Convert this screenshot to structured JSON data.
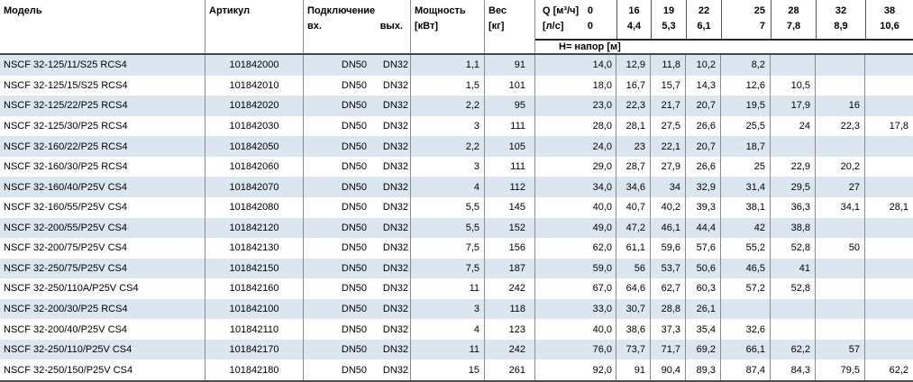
{
  "table": {
    "header": {
      "model": "Модель",
      "article": "Артикул",
      "connection": "Подключение",
      "inlet": "вх.",
      "outlet": "вых.",
      "power": "Мощность",
      "power_unit": "[кВт]",
      "weight": "Вес",
      "weight_unit": "[кг]",
      "q_label": "Q [м³/ч]",
      "ls_label": "[л/с]",
      "head_label": "Н= напор [м]",
      "flow_m3h": [
        "0",
        "16",
        "19",
        "22",
        "25",
        "28",
        "32",
        "38"
      ],
      "flow_ls": [
        "0",
        "4,4",
        "5,3",
        "6,1",
        "7",
        "7,8",
        "8,9",
        "10,6"
      ]
    },
    "rows": [
      {
        "model": "NSCF 32-125/11/S25 RCS4",
        "article": "101842000",
        "inlet": "DN50",
        "outlet": "DN32",
        "power": "1,1",
        "weight": "91",
        "q": [
          "14,0",
          "12,9",
          "11,8",
          "10,2",
          "8,2",
          "",
          "",
          ""
        ]
      },
      {
        "model": "NSCF 32-125/15/S25 RCS4",
        "article": "101842010",
        "inlet": "DN50",
        "outlet": "DN32",
        "power": "1,5",
        "weight": "101",
        "q": [
          "18,0",
          "16,7",
          "15,7",
          "14,3",
          "12,6",
          "10,5",
          "",
          ""
        ]
      },
      {
        "model": "NSCF 32-125/22/P25 RCS4",
        "article": "101842020",
        "inlet": "DN50",
        "outlet": "DN32",
        "power": "2,2",
        "weight": "95",
        "q": [
          "23,0",
          "22,3",
          "21,7",
          "20,7",
          "19,5",
          "17,9",
          "16",
          ""
        ]
      },
      {
        "model": "NSCF 32-125/30/P25 RCS4",
        "article": "101842030",
        "inlet": "DN50",
        "outlet": "DN32",
        "power": "3",
        "weight": "111",
        "q": [
          "28,0",
          "28,1",
          "27,5",
          "26,6",
          "25,5",
          "24",
          "22,3",
          "17,8"
        ]
      },
      {
        "model": "NSCF 32-160/22/P25 RCS4",
        "article": "101842050",
        "inlet": "DN50",
        "outlet": "DN32",
        "power": "2,2",
        "weight": "105",
        "q": [
          "24,0",
          "23",
          "22,1",
          "20,7",
          "18,7",
          "",
          "",
          ""
        ]
      },
      {
        "model": "NSCF 32-160/30/P25 RCS4",
        "article": "101842060",
        "inlet": "DN50",
        "outlet": "DN32",
        "power": "3",
        "weight": "111",
        "q": [
          "29,0",
          "28,7",
          "27,9",
          "26,6",
          "25",
          "22,9",
          "20,2",
          ""
        ]
      },
      {
        "model": "NSCF 32-160/40/P25V CS4",
        "article": "101842070",
        "inlet": "DN50",
        "outlet": "DN32",
        "power": "4",
        "weight": "112",
        "q": [
          "34,0",
          "34,6",
          "34",
          "32,9",
          "31,4",
          "29,5",
          "27",
          ""
        ]
      },
      {
        "model": "NSCF 32-160/55/P25V CS4",
        "article": "101842080",
        "inlet": "DN50",
        "outlet": "DN32",
        "power": "5,5",
        "weight": "145",
        "q": [
          "40,0",
          "40,7",
          "40,2",
          "39,3",
          "38,1",
          "36,3",
          "34,1",
          "28,1"
        ]
      },
      {
        "model": "NSCF 32-200/55/P25V CS4",
        "article": "101842120",
        "inlet": "DN50",
        "outlet": "DN32",
        "power": "5,5",
        "weight": "152",
        "q": [
          "49,0",
          "47,2",
          "46,1",
          "44,4",
          "42",
          "38,8",
          "",
          ""
        ]
      },
      {
        "model": "NSCF 32-200/75/P25V CS4",
        "article": "101842130",
        "inlet": "DN50",
        "outlet": "DN32",
        "power": "7,5",
        "weight": "156",
        "q": [
          "62,0",
          "61,1",
          "59,6",
          "57,6",
          "55,2",
          "52,8",
          "50",
          ""
        ]
      },
      {
        "model": "NSCF 32-250/75/P25V CS4",
        "article": "101842150",
        "inlet": "DN50",
        "outlet": "DN32",
        "power": "7,5",
        "weight": "187",
        "q": [
          "59,0",
          "56",
          "53,7",
          "50,6",
          "46,5",
          "41",
          "",
          ""
        ]
      },
      {
        "model": "NSCF 32-250/110A/P25V CS4",
        "article": "101842160",
        "inlet": "DN50",
        "outlet": "DN32",
        "power": "11",
        "weight": "242",
        "q": [
          "67,0",
          "64,6",
          "62,7",
          "60,3",
          "57,2",
          "52,8",
          "",
          ""
        ]
      },
      {
        "model": "NSCF 32-200/30/P25 RCS4",
        "article": "101842100",
        "inlet": "DN50",
        "outlet": "DN32",
        "power": "3",
        "weight": "118",
        "q": [
          "33,0",
          "30,7",
          "28,8",
          "26,1",
          "",
          "",
          "",
          ""
        ]
      },
      {
        "model": "NSCF 32-200/40/P25V CS4",
        "article": "101842110",
        "inlet": "DN50",
        "outlet": "DN32",
        "power": "4",
        "weight": "123",
        "q": [
          "40,0",
          "38,6",
          "37,3",
          "35,4",
          "32,6",
          "",
          "",
          ""
        ]
      },
      {
        "model": "NSCF 32-250/110/P25V CS4",
        "article": "101842170",
        "inlet": "DN50",
        "outlet": "DN32",
        "power": "11",
        "weight": "242",
        "q": [
          "76,0",
          "73,7",
          "71,7",
          "69,2",
          "66,1",
          "62,2",
          "57",
          ""
        ]
      },
      {
        "model": "NSCF 32-250/150/P25V CS4",
        "article": "101842180",
        "inlet": "DN50",
        "outlet": "DN32",
        "power": "15",
        "weight": "261",
        "q": [
          "92,0",
          "91",
          "90,4",
          "89,3",
          "87,4",
          "84,3",
          "79,5",
          "62,2"
        ]
      }
    ]
  }
}
